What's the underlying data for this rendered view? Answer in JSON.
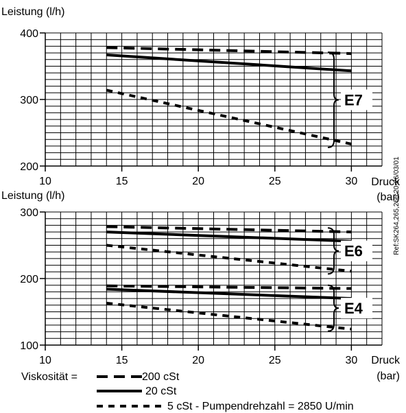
{
  "chart_data": [
    {
      "type": "line",
      "ylabel": "Leistung  (l/h)",
      "xlabel_line1": "Druck",
      "xlabel_line2": "(bar)",
      "xlim": [
        10,
        32
      ],
      "ylim": [
        200,
        400
      ],
      "x_ticks": [
        10,
        15,
        20,
        25,
        30
      ],
      "y_ticks": [
        200,
        300,
        400
      ],
      "grid": true,
      "series": [
        {
          "name": "200 cSt",
          "style": "long-dash",
          "x": [
            14,
            30
          ],
          "y": [
            378,
            369
          ]
        },
        {
          "name": "20 cSt",
          "style": "solid",
          "x": [
            14,
            30
          ],
          "y": [
            367,
            343
          ]
        },
        {
          "name": "5 cSt",
          "style": "short-dash",
          "x": [
            14,
            30
          ],
          "y": [
            314,
            233
          ]
        }
      ],
      "groups": [
        {
          "label": "E7",
          "y_from": 228,
          "y_to": 371
        }
      ]
    },
    {
      "type": "line",
      "ylabel": "Leistung  (l/h)",
      "xlabel_line1": "Druck",
      "xlabel_line2": "(bar)",
      "xlim": [
        10,
        32
      ],
      "ylim": [
        100,
        300
      ],
      "x_ticks": [
        10,
        15,
        20,
        25,
        30
      ],
      "y_ticks": [
        100,
        200,
        300
      ],
      "grid": true,
      "series": [
        {
          "name": "200 cSt",
          "style": "long-dash",
          "x": [
            14,
            30
          ],
          "y": [
            278,
            270
          ]
        },
        {
          "name": "20 cSt",
          "style": "solid",
          "x": [
            14,
            30
          ],
          "y": [
            270,
            256
          ]
        },
        {
          "name": "5 cSt",
          "style": "short-dash",
          "x": [
            14,
            30
          ],
          "y": [
            250,
            211
          ]
        },
        {
          "name": "200 cSt",
          "style": "long-dash",
          "x": [
            14,
            30
          ],
          "y": [
            189,
            185
          ]
        },
        {
          "name": "20 cSt",
          "style": "solid",
          "x": [
            14,
            30
          ],
          "y": [
            184,
            170
          ]
        },
        {
          "name": "5 cSt",
          "style": "short-dash",
          "x": [
            14,
            30
          ],
          "y": [
            163,
            124
          ]
        }
      ],
      "groups": [
        {
          "label": "E6",
          "y_from": 207,
          "y_to": 276
        },
        {
          "label": "E4",
          "y_from": 121,
          "y_to": 190
        }
      ]
    }
  ],
  "legend": {
    "prefix": "Viskosität =",
    "entries": [
      {
        "style": "long-dash",
        "label": "200 cSt"
      },
      {
        "style": "solid",
        "label": "20 cSt"
      },
      {
        "style": "short-dash",
        "label": "5 cSt - Pumpendrehzahl = 2850 U/min"
      }
    ]
  },
  "reference": "Ref:SK264,265,266;20-26/03/01"
}
